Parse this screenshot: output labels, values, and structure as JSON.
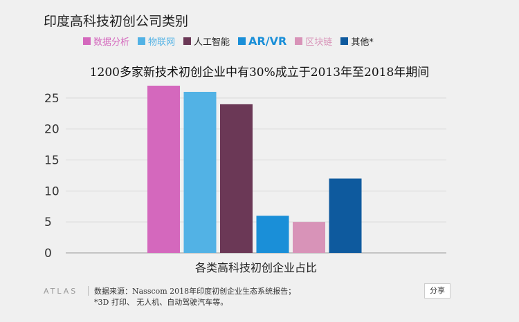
{
  "title": "印度高科技初创公司类别",
  "subtitle": "1200多家新技术初创企业中有30%成立于2013年至2018年期间",
  "footer": {
    "logo": "ATLAS",
    "source_line1": "数据来源：Nasscom 2018年印度初创企业生态系统报告；",
    "source_line2": "*3D 打印、 无人机、自动驾驶汽车等。",
    "share_label": "分享"
  },
  "chart_data": {
    "type": "bar",
    "title": "印度高科技初创公司类别",
    "subtitle": "1200多家新技术初创企业中有30%成立于2013年至2018年期间",
    "xlabel": "各类高科技初创企业占比",
    "ylabel": "",
    "ylim": [
      0,
      27
    ],
    "yticks": [
      0,
      5,
      10,
      15,
      20,
      25
    ],
    "grid": true,
    "legend_position": "top",
    "categories": [
      "数据分析",
      "物联网",
      "人工智能",
      "AR/VR",
      "区块链",
      "其他*"
    ],
    "values": [
      27,
      26,
      24,
      6,
      5,
      12
    ],
    "colors": [
      "#d468bd",
      "#52b2e5",
      "#6b3856",
      "#1a8fd8",
      "#d893b8",
      "#0e5a9e"
    ]
  }
}
